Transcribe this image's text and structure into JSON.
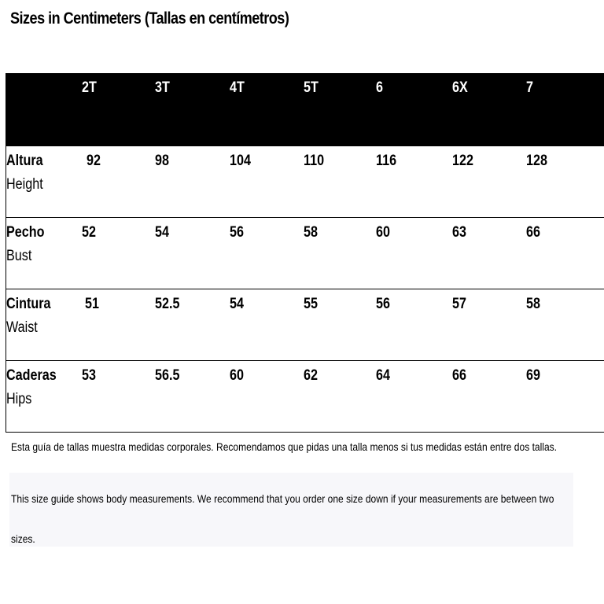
{
  "title": "Sizes in Centimeters (Tallas en centímetros)",
  "table": {
    "sizes": [
      "2T",
      "3T",
      "4T",
      "5T",
      "6",
      "6X",
      "7"
    ],
    "rows": [
      {
        "label_es": "Altura",
        "label_en": "Height",
        "values": [
          "92",
          "98",
          "104",
          "110",
          "116",
          "122",
          "128"
        ]
      },
      {
        "label_es": "Pecho",
        "label_en": "Bust",
        "values": [
          "52",
          "54",
          "56",
          "58",
          "60",
          "63",
          "66"
        ]
      },
      {
        "label_es": "Cintura",
        "label_en": "Waist",
        "values": [
          "51",
          "52.5",
          "54",
          "55",
          "56",
          "57",
          "58"
        ]
      },
      {
        "label_es": "Caderas",
        "label_en": "Hips",
        "values": [
          "53",
          "56.5",
          "60",
          "62",
          "64",
          "66",
          "69"
        ]
      }
    ]
  },
  "note_es": "Esta guía de tallas muestra medidas corporales. Recomendamos que pidas una talla menos si tus medidas están entre dos tallas.",
  "note_en_line1": "This size guide shows body measurements. We recommend that you order one size down if your measurements are between two",
  "note_en_line2": "sizes."
}
